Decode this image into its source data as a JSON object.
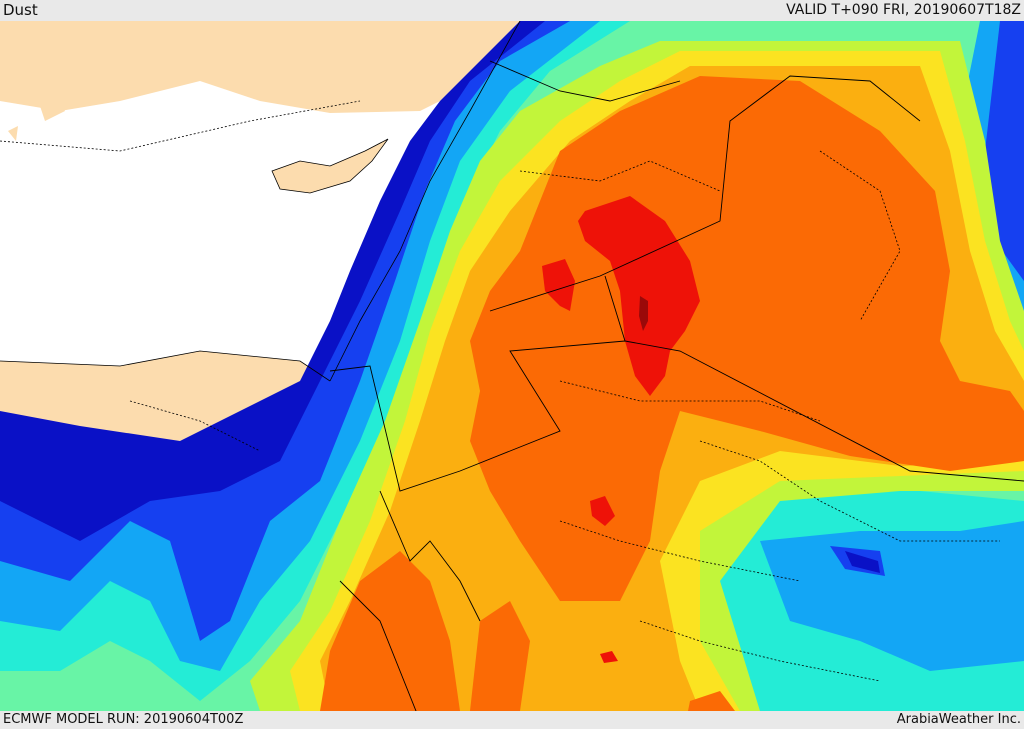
{
  "header": {
    "title": "Dust",
    "valid_time": "VALID T+090 FRI, 20190607T18Z"
  },
  "footer": {
    "model_run": "ECMWF MODEL RUN: 20190604T00Z",
    "credit": "ArabiaWeather Inc."
  },
  "colors": {
    "land": "#fcdcae",
    "sea": "#ffffff",
    "dust_levels": [
      "#0a11c6",
      "#1640f0",
      "#13a6f5",
      "#24ecd6",
      "#68f4a6",
      "#c2f53a",
      "#fbe321",
      "#fbaf10",
      "#fb6a05",
      "#ee1208",
      "#9a0909"
    ]
  }
}
